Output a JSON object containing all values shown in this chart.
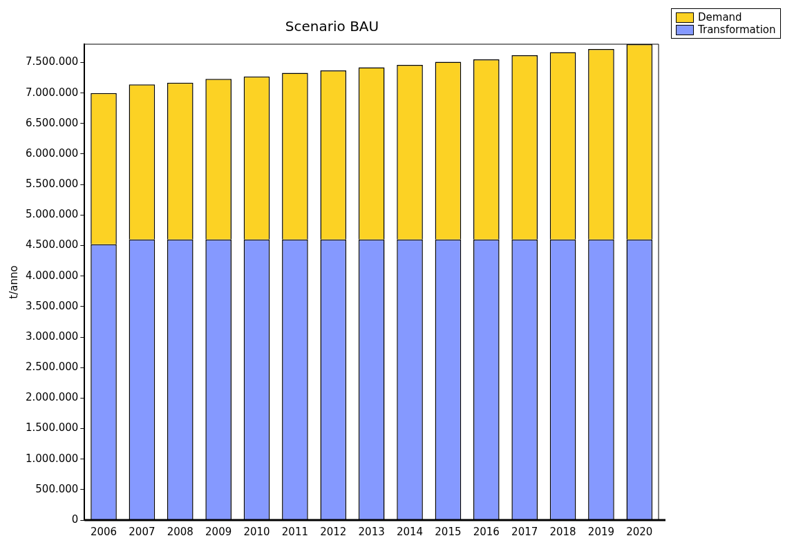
{
  "chart_data": {
    "type": "bar",
    "title": "Scenario BAU",
    "ylabel": "t/anno",
    "stacked": true,
    "categories": [
      "2006",
      "2007",
      "2008",
      "2009",
      "2010",
      "2011",
      "2012",
      "2013",
      "2014",
      "2015",
      "2016",
      "2017",
      "2018",
      "2019",
      "2020"
    ],
    "series": [
      {
        "name": "Transformation",
        "color": "#8599ff",
        "values": [
          4520000,
          4600000,
          4600000,
          4600000,
          4600000,
          4600000,
          4600000,
          4600000,
          4600000,
          4600000,
          4600000,
          4600000,
          4600000,
          4600000,
          4600000
        ]
      },
      {
        "name": "Demand",
        "color": "#fcd224",
        "values": [
          2480000,
          2540000,
          2570000,
          2630000,
          2670000,
          2730000,
          2770000,
          2820000,
          2860000,
          2910000,
          2950000,
          3020000,
          3070000,
          3120000,
          3200000
        ]
      }
    ],
    "ylim": [
      0,
      7800000
    ],
    "yticks": [
      {
        "value": 0,
        "label": "0"
      },
      {
        "value": 500000,
        "label": "500.000"
      },
      {
        "value": 1000000,
        "label": "1.000.000"
      },
      {
        "value": 1500000,
        "label": "1.500.000"
      },
      {
        "value": 2000000,
        "label": "2.000.000"
      },
      {
        "value": 2500000,
        "label": "2.500.000"
      },
      {
        "value": 3000000,
        "label": "3.000.000"
      },
      {
        "value": 3500000,
        "label": "3.500.000"
      },
      {
        "value": 4000000,
        "label": "4.000.000"
      },
      {
        "value": 4500000,
        "label": "4.500.000"
      },
      {
        "value": 5000000,
        "label": "5.000.000"
      },
      {
        "value": 5500000,
        "label": "5.500.000"
      },
      {
        "value": 6000000,
        "label": "6.000.000"
      },
      {
        "value": 6500000,
        "label": "6.500.000"
      },
      {
        "value": 7000000,
        "label": "7.000.000"
      },
      {
        "value": 7500000,
        "label": "7.500.000"
      }
    ],
    "grid": false,
    "legend": "top right"
  }
}
